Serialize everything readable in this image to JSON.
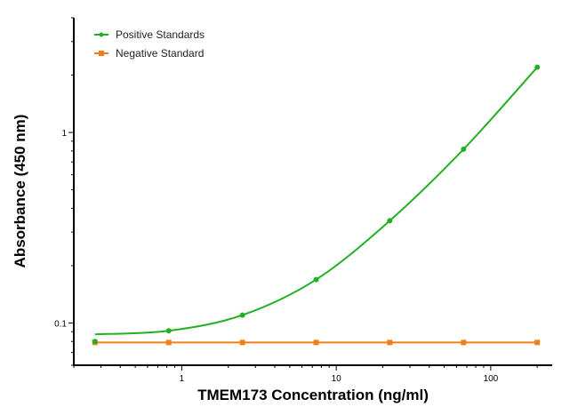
{
  "chart_data": {
    "type": "line",
    "title": "",
    "xlabel": "TMEM173 Concentration (ng/ml)",
    "ylabel": "Absorbance (450 nm)",
    "xscale": "log",
    "yscale": "log",
    "xlim": [
      0.2,
      250
    ],
    "ylim": [
      0.06,
      4
    ],
    "x_ticks": [
      "1",
      "10",
      "100"
    ],
    "y_ticks": [
      "0.1",
      "1"
    ],
    "grid": false,
    "legend": "top-left",
    "x": [
      0.274,
      0.823,
      2.47,
      7.41,
      22.2,
      66.7,
      200
    ],
    "series": [
      {
        "name": "Positive Standards",
        "color": "#22b022",
        "marker": "circle",
        "fit": "smooth curve",
        "values": [
          0.08,
          0.091,
          0.11,
          0.169,
          0.344,
          0.817,
          2.2
        ]
      },
      {
        "name": "Negative Standard",
        "color": "#f07f1a",
        "marker": "square",
        "values": [
          0.079,
          0.079,
          0.079,
          0.079,
          0.079,
          0.079,
          0.079
        ]
      }
    ]
  }
}
